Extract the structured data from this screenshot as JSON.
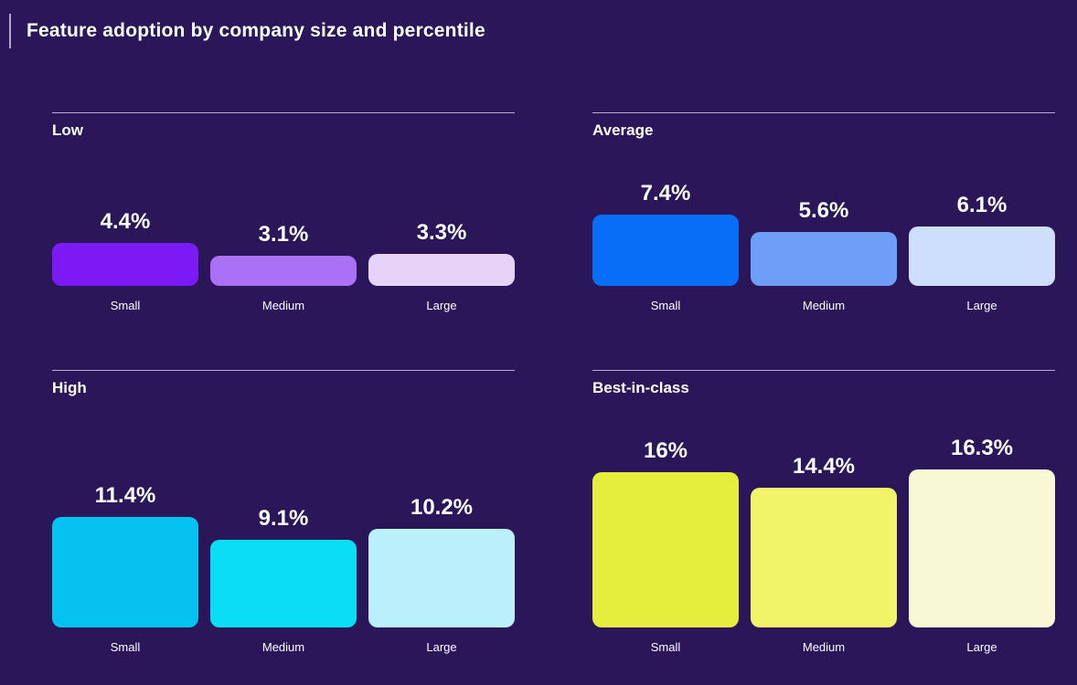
{
  "page": {
    "title": "Feature adoption by company size and percentile"
  },
  "theme": {
    "background": "#2a1659",
    "text": "#ffffff",
    "separator": "#cfc9e2",
    "accent_bar": "#b3a8cf"
  },
  "chart_data": {
    "type": "bar",
    "title": "Feature adoption by company size and percentile",
    "unit": "%",
    "categories": [
      "Small",
      "Medium",
      "Large"
    ],
    "ylim": [
      0,
      18
    ],
    "grid": false,
    "legend": "none",
    "layout": "2x2 small multiples, shared value scale, baseline-aligned bars",
    "panels": [
      {
        "title": "Low",
        "values": [
          4.4,
          3.1,
          3.3
        ],
        "display": [
          "4.4%",
          "3.1%",
          "3.3%"
        ],
        "colors": [
          "#7c1af5",
          "#aa70f5",
          "#e8d3f8"
        ]
      },
      {
        "title": "Average",
        "values": [
          7.4,
          5.6,
          6.1
        ],
        "display": [
          "7.4%",
          "5.6%",
          "6.1%"
        ],
        "colors": [
          "#076ef5",
          "#6e9ff7",
          "#cedffc"
        ]
      },
      {
        "title": "High",
        "values": [
          11.4,
          9.1,
          10.2
        ],
        "display": [
          "11.4%",
          "9.1%",
          "10.2%"
        ],
        "colors": [
          "#06c2f0",
          "#0adef5",
          "#b9f0fc"
        ]
      },
      {
        "title": "Best-in-class",
        "values": [
          16,
          14.4,
          16.3
        ],
        "display": [
          "16%",
          "14.4%",
          "16.3%"
        ],
        "colors": [
          "#e5ee3d",
          "#f1f469",
          "#f8f9d4"
        ]
      }
    ]
  }
}
